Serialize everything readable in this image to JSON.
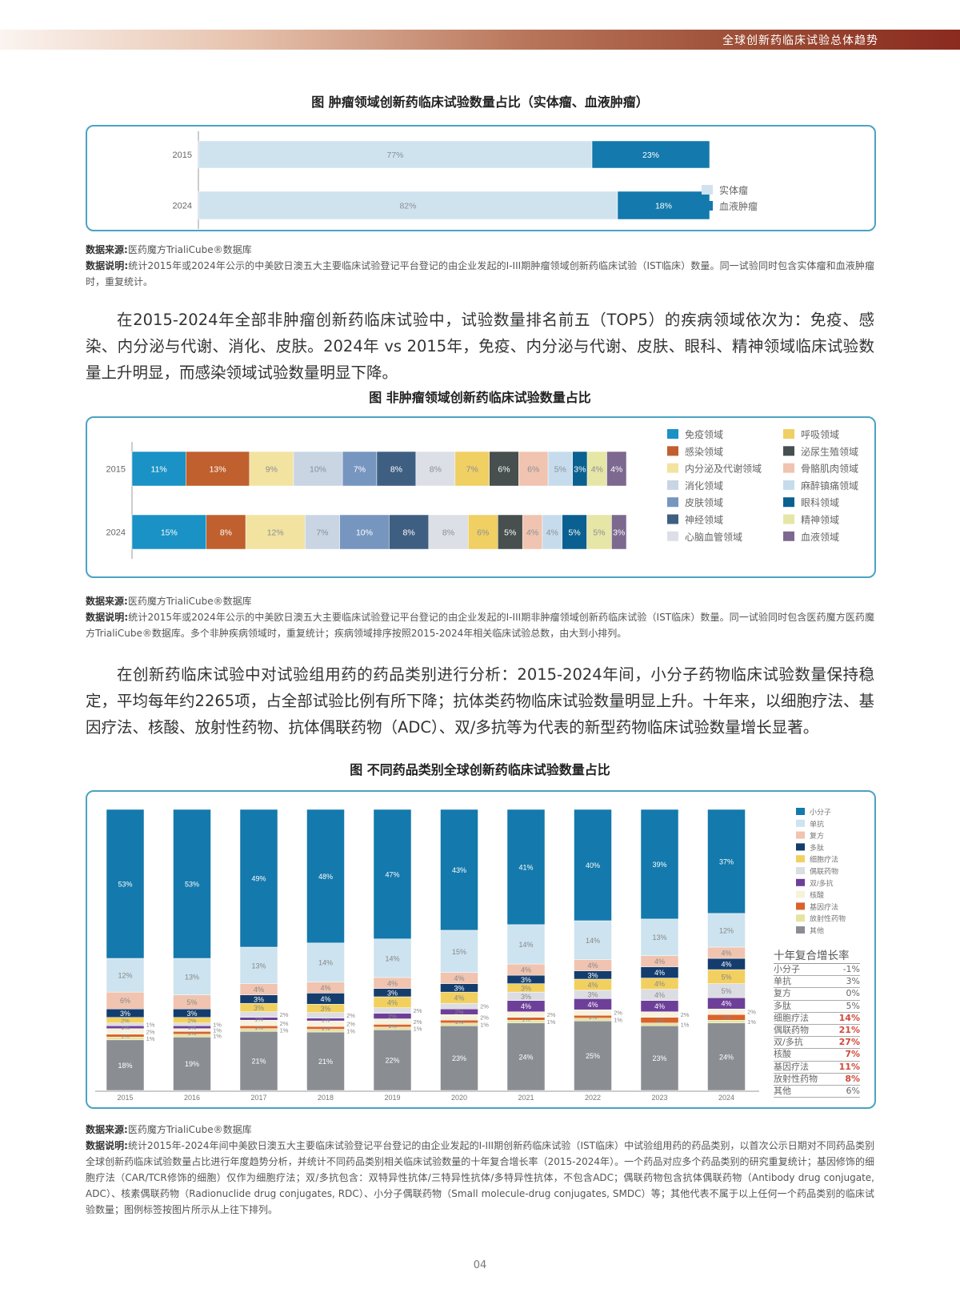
{
  "header": {
    "section_title": "全球创新药临床试验总体趋势"
  },
  "chart1": {
    "title": "图 肿瘤领域创新药临床试验数量占比（实体瘤、血液肿瘤）",
    "source_label": "数据来源:",
    "source": "医药魔方TrialiCube®数据库",
    "note_label": "数据说明:",
    "note": "统计2015年或2024年公示的中美欧日澳五大主要临床试验登记平台登记的由企业发起的I-III期肿瘤领域创新药临床试验（IST临床）数量。同一试验同时包含实体瘤和血液肿瘤时，重复统计。"
  },
  "paragraph1": "在2015-2024年全部非肿瘤创新药临床试验中，试验数量排名前五（TOP5）的疾病领域依次为：免疫、感染、内分泌与代谢、消化、皮肤。2024年 vs 2015年，免疫、内分泌与代谢、皮肤、眼科、精神领域临床试验数量上升明显，而感染领域试验数量明显下降。",
  "chart2": {
    "title": "图 非肿瘤领域创新药临床试验数量占比",
    "source_label": "数据来源:",
    "source": "医药魔方TrialiCube®数据库",
    "note_label": "数据说明:",
    "note": "统计2015年或2024年公示的中美欧日澳五大主要临床试验登记平台登记的由企业发起的I-III期非肿瘤领域创新药临床试验（IST临床）数量。同一试验同时包含医药魔方医药魔方TrialiCube®数据库。多个非肿疾病领域时，重复统计；疾病领域排序按照2015-2024年相关临床试验总数，由大到小排列。"
  },
  "paragraph2": "在创新药临床试验中对试验组用药的药品类别进行分析：2015-2024年间，小分子药物临床试验数量保持稳定，平均每年约2265项，占全部试验比例有所下降；抗体类药物临床试验数量明显上升。十年来，以细胞疗法、基因疗法、核酸、放射性药物、抗体偶联药物（ADC）、双/多抗等为代表的新型药物临床试验数量增长显著。",
  "chart3": {
    "title": "图 不同药品类别全球创新药临床试验数量占比",
    "source_label": "数据来源:",
    "source": "医药魔方TrialiCube®数据库",
    "note_label": "数据说明:",
    "note": "统计2015年-2024年间中美欧日澳五大主要临床试验登记平台登记的由企业发起的I-III期创新药临床试验（IST临床）中试验组用药的药品类别，以首次公示日期对不同药品类别全球创新药临床试验数量占比进行年度趋势分析，并统计不同药品类别相关临床试验数量的十年复合增长率（2015-2024年）。一个药品对应多个药品类别的研究重复统计；基因修饰的细胞疗法（CAR/TCR修饰的细胞）仅作为细胞疗法；双/多抗包含：双特异性抗体/三特异性抗体/多特异性抗体，不包含ADC；偶联药物包含抗体偶联药物（Antibody drug conjugate, ADC）、核素偶联药物（Radionuclide drug conjugates, RDC）、小分子偶联药物（Small molecule-drug conjugates, SMDC）等；其他代表不属于以上任何一个药品类别的临床试验数量；图例标签按图片所示从上往下排列。"
  },
  "page_number": "04",
  "chart_data": [
    {
      "type": "bar",
      "orientation": "horizontal",
      "stacked": true,
      "normalized": true,
      "title": "图 肿瘤领域创新药临床试验数量占比（实体瘤、血液肿瘤）",
      "categories": [
        "2015",
        "2024"
      ],
      "series": [
        {
          "name": "实体瘤",
          "color": "#cfe3ef",
          "values": [
            77,
            82
          ]
        },
        {
          "name": "血液肿瘤",
          "color": "#1479ac",
          "values": [
            23,
            18
          ]
        }
      ],
      "legend": "right",
      "grid": false
    },
    {
      "type": "bar",
      "orientation": "horizontal",
      "stacked": true,
      "normalized": true,
      "title": "图 非肿瘤领域创新药临床试验数量占比",
      "categories": [
        "2015",
        "2024"
      ],
      "series": [
        {
          "name": "免疫领域",
          "color": "#1a92c6",
          "values": [
            11,
            15
          ]
        },
        {
          "name": "感染领域",
          "color": "#c0602f",
          "values": [
            13,
            8
          ]
        },
        {
          "name": "内分泌及代谢领域",
          "color": "#f2e3a0",
          "values": [
            9,
            12
          ]
        },
        {
          "name": "消化领域",
          "color": "#c9d5e3",
          "values": [
            10,
            7
          ]
        },
        {
          "name": "皮肤领域",
          "color": "#7696c0",
          "values": [
            7,
            10
          ]
        },
        {
          "name": "神经领域",
          "color": "#3f5f82",
          "values": [
            8,
            8
          ]
        },
        {
          "name": "心脑血管领域",
          "color": "#dcdfe5",
          "values": [
            8,
            8
          ]
        },
        {
          "name": "呼吸领域",
          "color": "#f0cf63",
          "values": [
            7,
            6
          ]
        },
        {
          "name": "泌尿生殖领域",
          "color": "#474f4f",
          "values": [
            6,
            5
          ]
        },
        {
          "name": "骨骼肌肉领域",
          "color": "#f0c4b0",
          "values": [
            6,
            4
          ]
        },
        {
          "name": "麻醉镇痛领域",
          "color": "#c6dcec",
          "values": [
            5,
            4
          ]
        },
        {
          "name": "眼科领域",
          "color": "#0a6090",
          "values": [
            3,
            5
          ]
        },
        {
          "name": "精神领域",
          "color": "#e6e6a6",
          "values": [
            4,
            5
          ]
        },
        {
          "name": "血液领域",
          "color": "#7d6890",
          "values": [
            4,
            3
          ]
        }
      ],
      "legend": "right",
      "grid": false
    },
    {
      "type": "bar",
      "orientation": "vertical",
      "stacked": true,
      "normalized": true,
      "title": "图 不同药品类别全球创新药临床试验数量占比",
      "categories": [
        "2015",
        "2016",
        "2017",
        "2018",
        "2019",
        "2020",
        "2021",
        "2022",
        "2023",
        "2024"
      ],
      "series": [
        {
          "name": "小分子",
          "color": "#1479ac",
          "values": [
            53,
            53,
            49,
            48,
            47,
            43,
            41,
            40,
            39,
            37
          ]
        },
        {
          "name": "单抗",
          "color": "#cde3ef",
          "values": [
            12,
            13,
            13,
            14,
            14,
            15,
            14,
            14,
            13,
            12
          ]
        },
        {
          "name": "复方",
          "color": "#f0c4b0",
          "values": [
            6,
            5,
            4,
            4,
            4,
            4,
            4,
            4,
            4,
            4
          ]
        },
        {
          "name": "多肽",
          "color": "#143d6e",
          "values": [
            3,
            3,
            3,
            4,
            3,
            3,
            3,
            3,
            4,
            4
          ]
        },
        {
          "name": "细胞疗法",
          "color": "#f2d060",
          "values": [
            2,
            2,
            3,
            3,
            4,
            4,
            3,
            4,
            4,
            5
          ]
        },
        {
          "name": "偶联药物",
          "color": "#dcdde3",
          "values": [
            1,
            1,
            2,
            2,
            2,
            2,
            3,
            3,
            4,
            5
          ]
        },
        {
          "name": "双/多抗",
          "color": "#6d3f99",
          "values": [
            1,
            1,
            1,
            1,
            2,
            2,
            4,
            4,
            4,
            4
          ]
        },
        {
          "name": "核酸",
          "color": "#f7f2dc",
          "values": [
            2,
            1,
            2,
            2,
            2,
            2,
            2,
            2,
            2,
            2
          ]
        },
        {
          "name": "基因疗法",
          "color": "#d9622d",
          "values": [
            1,
            1,
            1,
            1,
            1,
            1,
            1,
            1,
            2,
            2
          ]
        },
        {
          "name": "放射性药物",
          "color": "#e6e3a0",
          "values": [
            1,
            1,
            1,
            1,
            1,
            1,
            1,
            1,
            1,
            1
          ]
        },
        {
          "name": "其他",
          "color": "#8a8e93",
          "values": [
            18,
            19,
            21,
            21,
            22,
            23,
            24,
            25,
            23,
            24
          ]
        }
      ],
      "legend": "right",
      "grid": false,
      "cagr_table": {
        "title": "十年复合增长率",
        "highlight_color": "#d0493a",
        "rows": [
          {
            "name": "小分子",
            "value": "-1%",
            "highlight": false
          },
          {
            "name": "单抗",
            "value": "3%",
            "highlight": false
          },
          {
            "name": "复方",
            "value": "0%",
            "highlight": false
          },
          {
            "name": "多肽",
            "value": "5%",
            "highlight": false
          },
          {
            "name": "细胞疗法",
            "value": "14%",
            "highlight": true
          },
          {
            "name": "偶联药物",
            "value": "21%",
            "highlight": true
          },
          {
            "name": "双/多抗",
            "value": "27%",
            "highlight": true
          },
          {
            "name": "核酸",
            "value": "7%",
            "highlight": true
          },
          {
            "name": "基因疗法",
            "value": "11%",
            "highlight": true
          },
          {
            "name": "放射性药物",
            "value": "8%",
            "highlight": true
          },
          {
            "name": "其他",
            "value": "6%",
            "highlight": false
          }
        ]
      }
    }
  ]
}
